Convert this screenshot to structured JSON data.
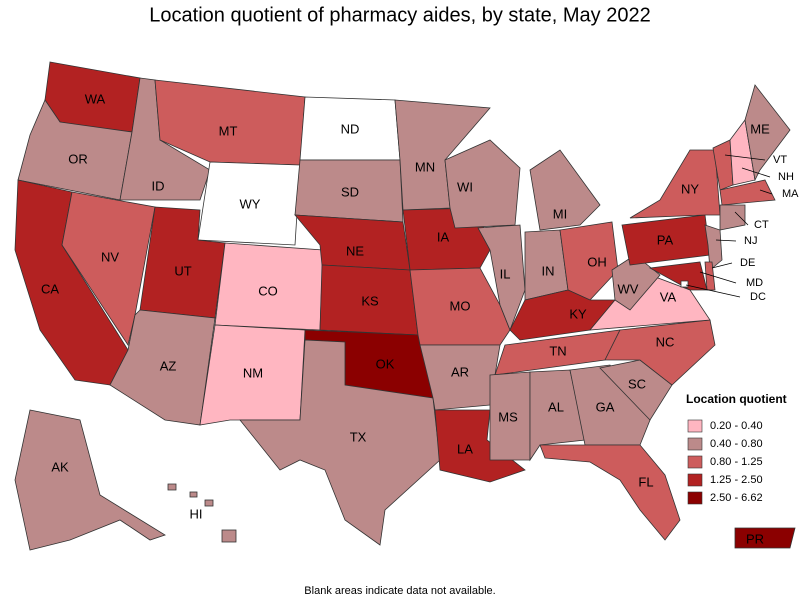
{
  "title": "Location quotient of pharmacy aides, by state, May 2022",
  "legend": {
    "title": "Location quotient",
    "bins": [
      {
        "label": "0.20 - 0.40",
        "color": "#ffb6c1"
      },
      {
        "label": "0.40 - 0.80",
        "color": "#bc8a8a"
      },
      {
        "label": "0.80 - 1.25",
        "color": "#cd5c5c"
      },
      {
        "label": "1.25 - 2.50",
        "color": "#b22222"
      },
      {
        "label": "2.50 - 6.62",
        "color": "#8b0000"
      }
    ]
  },
  "states": [
    {
      "name": "WA",
      "range": "1.25 - 2.50"
    },
    {
      "name": "OR",
      "range": "0.40 - 0.80"
    },
    {
      "name": "CA",
      "range": "1.25 - 2.50"
    },
    {
      "name": "NV",
      "range": "0.80 - 1.25"
    },
    {
      "name": "ID",
      "range": "0.40 - 0.80"
    },
    {
      "name": "MT",
      "range": "0.80 - 1.25"
    },
    {
      "name": "WY",
      "range": null
    },
    {
      "name": "UT",
      "range": "1.25 - 2.50"
    },
    {
      "name": "AZ",
      "range": "0.40 - 0.80"
    },
    {
      "name": "CO",
      "range": "0.20 - 0.40"
    },
    {
      "name": "NM",
      "range": "0.20 - 0.40"
    },
    {
      "name": "ND",
      "range": null
    },
    {
      "name": "SD",
      "range": "0.40 - 0.80"
    },
    {
      "name": "NE",
      "range": "1.25 - 2.50"
    },
    {
      "name": "KS",
      "range": "1.25 - 2.50"
    },
    {
      "name": "OK",
      "range": "2.50 - 6.62"
    },
    {
      "name": "TX",
      "range": "0.40 - 0.80"
    },
    {
      "name": "MN",
      "range": "0.40 - 0.80"
    },
    {
      "name": "IA",
      "range": "1.25 - 2.50"
    },
    {
      "name": "MO",
      "range": "0.80 - 1.25"
    },
    {
      "name": "AR",
      "range": "0.40 - 0.80"
    },
    {
      "name": "LA",
      "range": "1.25 - 2.50"
    },
    {
      "name": "WI",
      "range": "0.40 - 0.80"
    },
    {
      "name": "IL",
      "range": "0.40 - 0.80"
    },
    {
      "name": "MI",
      "range": "0.40 - 0.80"
    },
    {
      "name": "IN",
      "range": "0.40 - 0.80"
    },
    {
      "name": "OH",
      "range": "0.80 - 1.25"
    },
    {
      "name": "KY",
      "range": "1.25 - 2.50"
    },
    {
      "name": "TN",
      "range": "0.80 - 1.25"
    },
    {
      "name": "MS",
      "range": "0.40 - 0.80"
    },
    {
      "name": "AL",
      "range": "0.40 - 0.80"
    },
    {
      "name": "GA",
      "range": "0.40 - 0.80"
    },
    {
      "name": "FL",
      "range": "0.80 - 1.25"
    },
    {
      "name": "SC",
      "range": "0.40 - 0.80"
    },
    {
      "name": "NC",
      "range": "0.80 - 1.25"
    },
    {
      "name": "VA",
      "range": "0.20 - 0.40"
    },
    {
      "name": "WV",
      "range": "0.40 - 0.80"
    },
    {
      "name": "PA",
      "range": "1.25 - 2.50"
    },
    {
      "name": "NY",
      "range": "0.80 - 1.25"
    },
    {
      "name": "VT",
      "range": "0.80 - 1.25"
    },
    {
      "name": "NH",
      "range": "0.20 - 0.40"
    },
    {
      "name": "ME",
      "range": "0.40 - 0.80"
    },
    {
      "name": "MA",
      "range": "0.80 - 1.25"
    },
    {
      "name": "CT",
      "range": "0.40 - 0.80"
    },
    {
      "name": "NJ",
      "range": "0.40 - 0.80"
    },
    {
      "name": "DE",
      "range": "0.80 - 1.25"
    },
    {
      "name": "MD",
      "range": "1.25 - 2.50"
    },
    {
      "name": "DC",
      "range": null
    },
    {
      "name": "AK",
      "range": "0.40 - 0.80"
    },
    {
      "name": "HI",
      "range": "0.40 - 0.80"
    },
    {
      "name": "PR",
      "range": "2.50 - 6.62"
    }
  ],
  "note": "Blank areas indicate data not available."
}
